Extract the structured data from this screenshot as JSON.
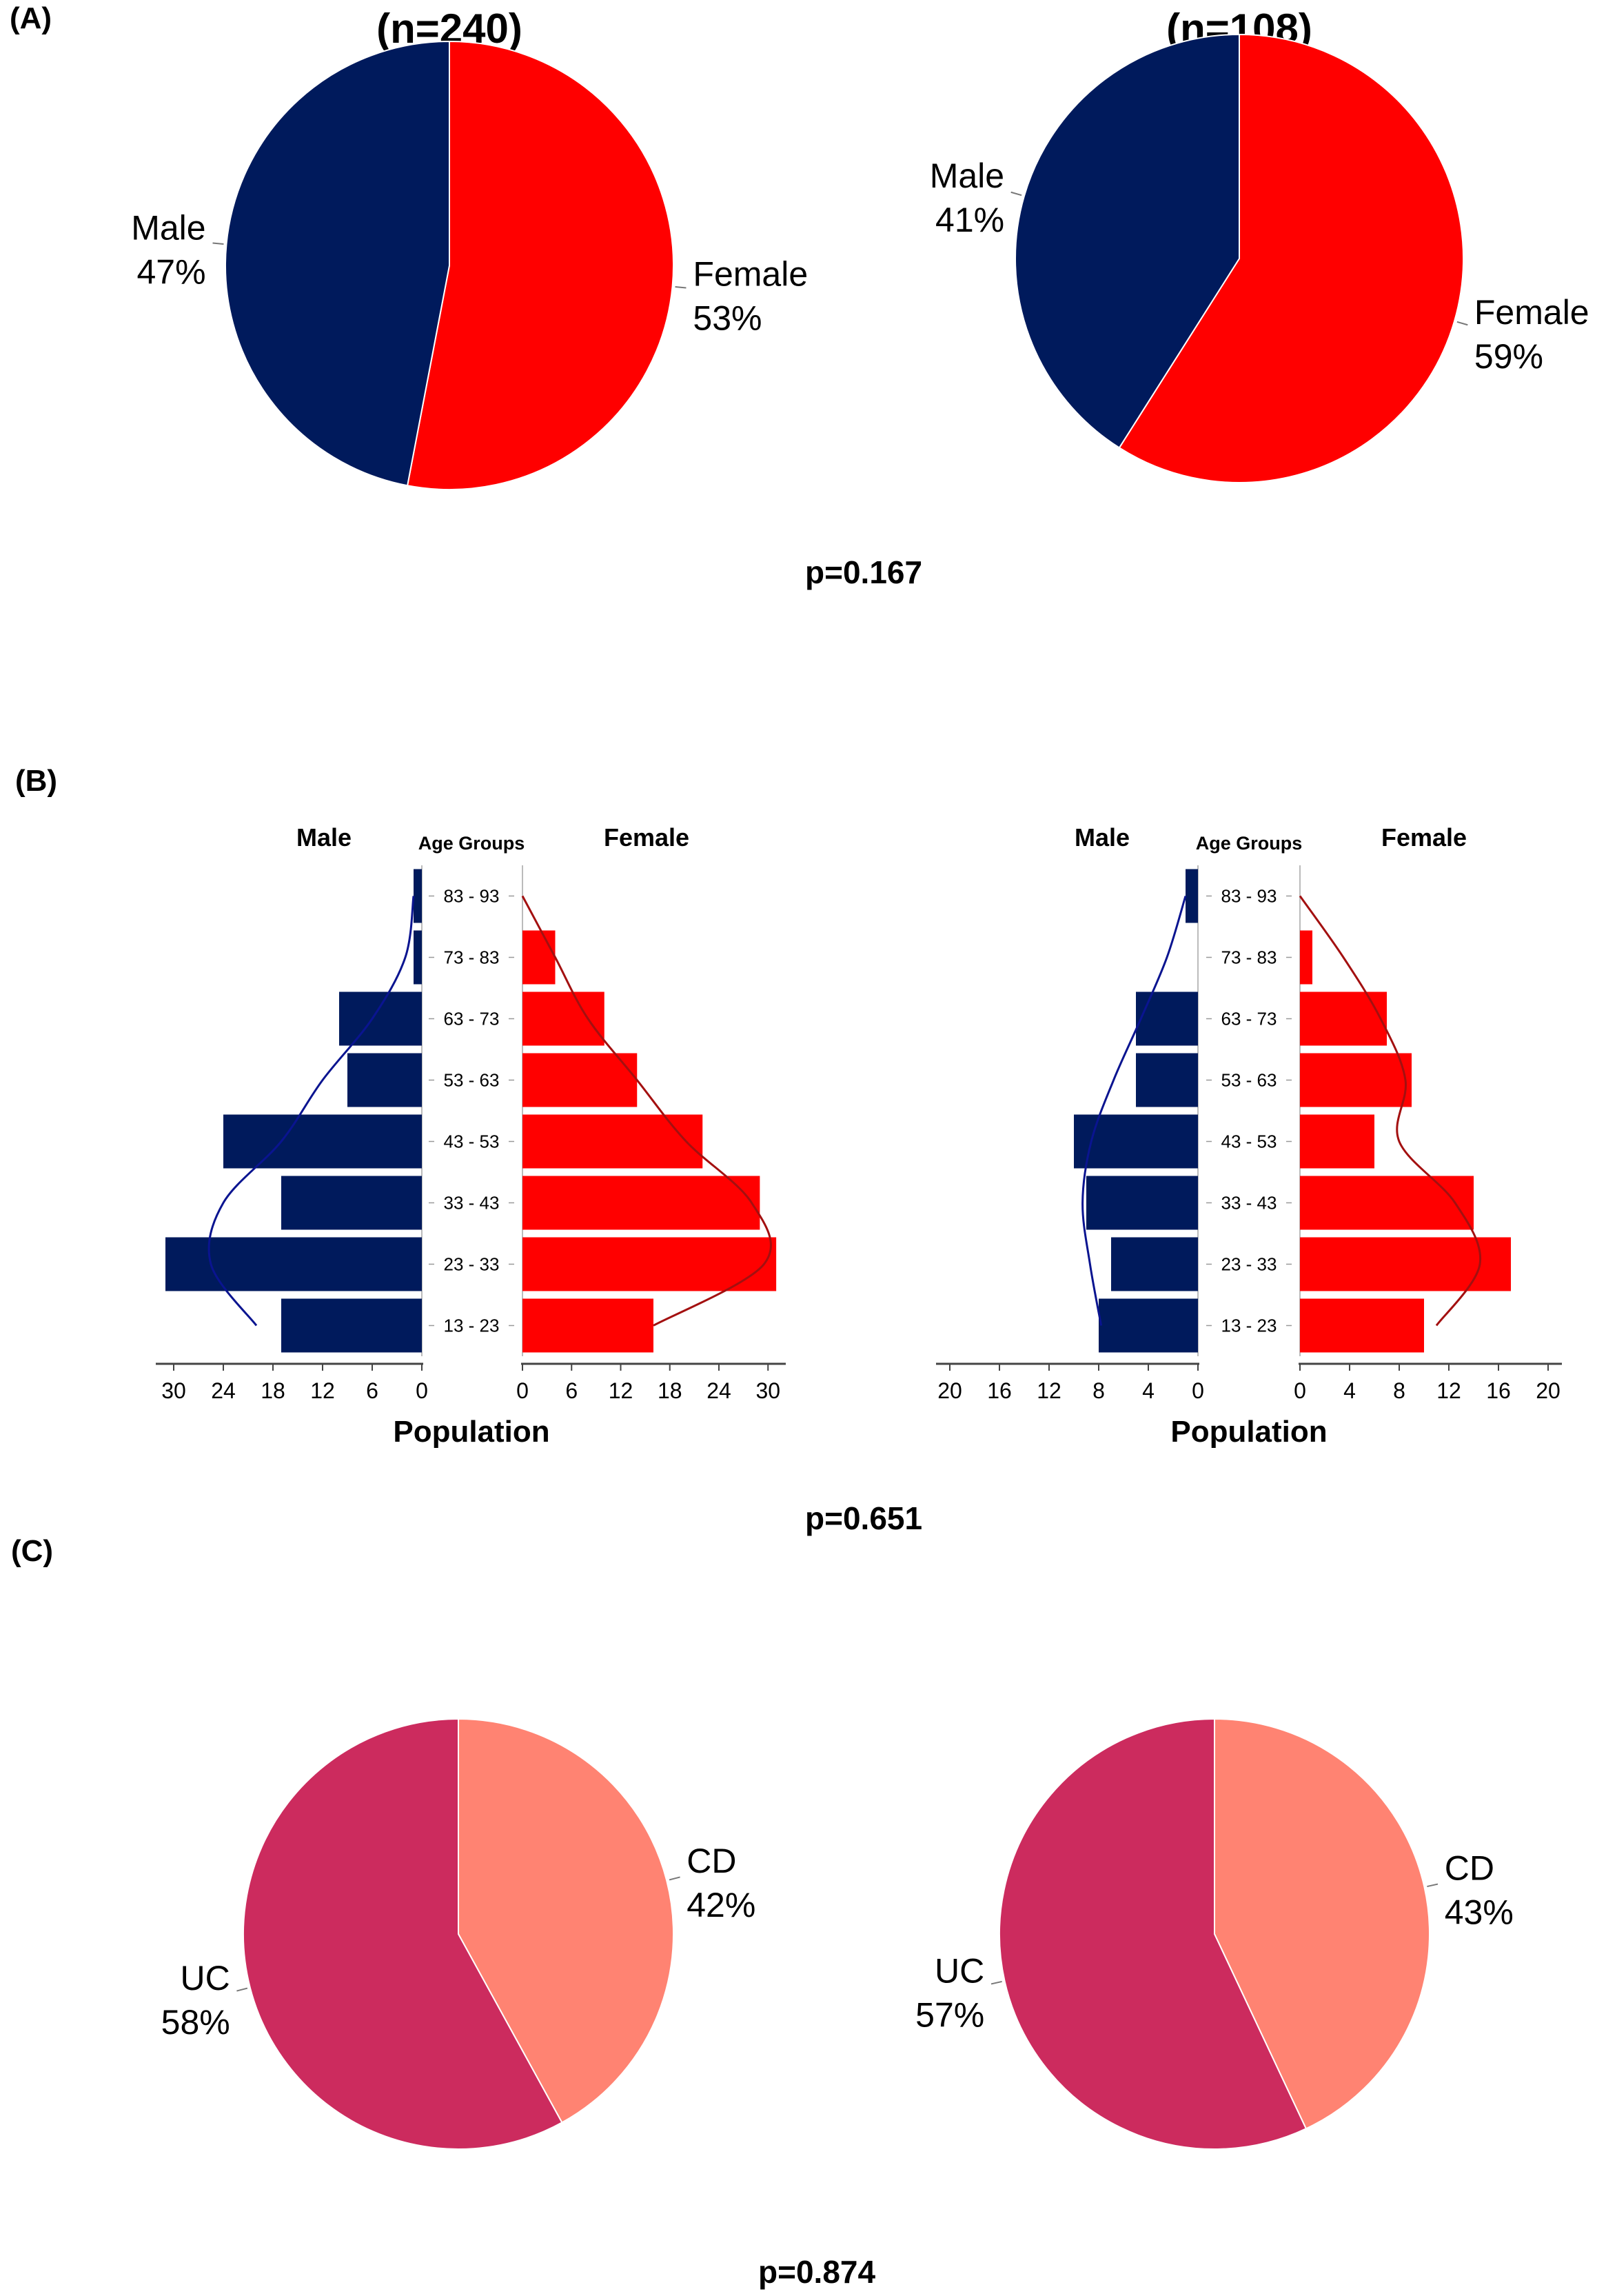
{
  "panels": {
    "a": {
      "label": "(A)",
      "p_value": "p=0.167"
    },
    "b": {
      "label": "(B)",
      "p_value": "p=0.651"
    },
    "c": {
      "label": "(C)",
      "p_value": "p=0.874"
    }
  },
  "colors": {
    "male": "#001a5c",
    "female": "#ff0000",
    "uc": "#cc2b5e",
    "cd": "#ff8372",
    "male_curve": "#0a1490",
    "female_curve": "#a31010",
    "axis": "#555555"
  },
  "chart_data": [
    {
      "id": "sex-cohort-1",
      "type": "pie",
      "title": "(n=240)",
      "slices": [
        {
          "name": "Female",
          "value": 53,
          "label": "53%",
          "color": "#ff0000"
        },
        {
          "name": "Male",
          "value": 47,
          "label": "47%",
          "color": "#001a5c"
        }
      ]
    },
    {
      "id": "sex-cohort-2",
      "type": "pie",
      "title": "(n=108)",
      "slices": [
        {
          "name": "Female",
          "value": 59,
          "label": "59%",
          "color": "#ff0000"
        },
        {
          "name": "Male",
          "value": 41,
          "label": "41%",
          "color": "#001a5c"
        }
      ]
    },
    {
      "id": "age-pyramid-1",
      "type": "bar",
      "orientation": "population-pyramid",
      "male_title": "Male",
      "female_title": "Female",
      "age_axis_title": "Age Groups",
      "xlabel": "Population",
      "categories": [
        "13 - 23",
        "23 - 33",
        "33 - 43",
        "43 - 53",
        "53 - 63",
        "63 - 73",
        "73 - 83",
        "83 - 93"
      ],
      "series": [
        {
          "name": "Male",
          "values": [
            17,
            31,
            17,
            24,
            9,
            10,
            1,
            1
          ]
        },
        {
          "name": "Female",
          "values": [
            16,
            31,
            29,
            22,
            14,
            10,
            4,
            0
          ]
        }
      ],
      "male_ticks": [
        30,
        24,
        18,
        12,
        6,
        0
      ],
      "female_ticks": [
        0,
        6,
        12,
        18,
        24,
        30
      ],
      "xlim": [
        0,
        32
      ],
      "male_curve": [
        [
          0.5,
          20
        ],
        [
          1.5,
          25.5
        ],
        [
          2.5,
          24
        ],
        [
          3.5,
          17
        ],
        [
          4.5,
          12
        ],
        [
          5.5,
          6
        ],
        [
          6.5,
          2
        ],
        [
          7.5,
          1
        ]
      ],
      "female_curve": [
        [
          0.5,
          16
        ],
        [
          1.5,
          29.5
        ],
        [
          2.5,
          28
        ],
        [
          3.5,
          20
        ],
        [
          4.5,
          14
        ],
        [
          5.5,
          8
        ],
        [
          6.5,
          4
        ],
        [
          7.5,
          0
        ]
      ]
    },
    {
      "id": "age-pyramid-2",
      "type": "bar",
      "orientation": "population-pyramid",
      "male_title": "Male",
      "female_title": "Female",
      "age_axis_title": "Age Groups",
      "xlabel": "Population",
      "categories": [
        "13 - 23",
        "23 - 33",
        "33 - 43",
        "43 - 53",
        "53 - 63",
        "63 - 73",
        "73 - 83",
        "83 - 93"
      ],
      "series": [
        {
          "name": "Male",
          "values": [
            8,
            7,
            9,
            10,
            5,
            5,
            0,
            1
          ]
        },
        {
          "name": "Female",
          "values": [
            10,
            17,
            14,
            6,
            9,
            7,
            1,
            0
          ]
        }
      ],
      "male_ticks": [
        20,
        16,
        12,
        8,
        4,
        0
      ],
      "female_ticks": [
        0,
        4,
        8,
        12,
        16,
        20
      ],
      "xlim": [
        0,
        21
      ],
      "male_curve": [
        [
          0.5,
          7.8
        ],
        [
          1.5,
          8.7
        ],
        [
          2.5,
          9.3
        ],
        [
          3.5,
          8.6
        ],
        [
          4.5,
          6.8
        ],
        [
          5.5,
          4.6
        ],
        [
          6.5,
          2.5
        ],
        [
          7.5,
          1
        ]
      ],
      "female_curve": [
        [
          0.5,
          11
        ],
        [
          1.5,
          14.5
        ],
        [
          2.5,
          12.5
        ],
        [
          3.5,
          8
        ],
        [
          4.5,
          8.5
        ],
        [
          5.5,
          6.5
        ],
        [
          6.5,
          3.5
        ],
        [
          7.5,
          0
        ]
      ]
    },
    {
      "id": "disease-cohort-1",
      "type": "pie",
      "title": "",
      "slices": [
        {
          "name": "CD",
          "value": 42,
          "label": "42%",
          "color": "#ff8372"
        },
        {
          "name": "UC",
          "value": 58,
          "label": "58%",
          "color": "#cc2b5e"
        }
      ]
    },
    {
      "id": "disease-cohort-2",
      "type": "pie",
      "title": "",
      "slices": [
        {
          "name": "CD",
          "value": 43,
          "label": "43%",
          "color": "#ff8372"
        },
        {
          "name": "UC",
          "value": 57,
          "label": "57%",
          "color": "#cc2b5e"
        }
      ]
    }
  ]
}
